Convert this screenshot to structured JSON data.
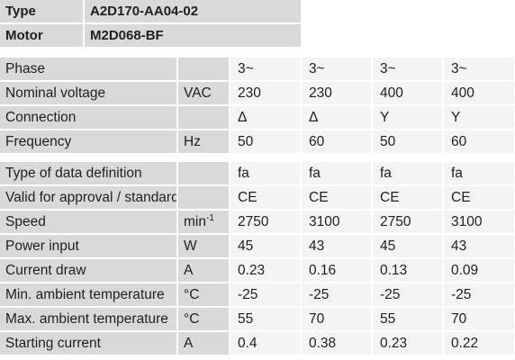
{
  "header": {
    "type_label": "Type",
    "type_value": "A2D170-AA04-02",
    "motor_label": "Motor",
    "motor_value": "M2D068-BF"
  },
  "group1": [
    {
      "label": "Phase",
      "unit": "",
      "values": [
        "3~",
        "3~",
        "3~",
        "3~"
      ]
    },
    {
      "label": "Nominal voltage",
      "unit": "VAC",
      "values": [
        "230",
        "230",
        "400",
        "400"
      ]
    },
    {
      "label": "Connection",
      "unit": "",
      "values": [
        "Δ",
        "Δ",
        "Y",
        "Y"
      ]
    },
    {
      "label": "Frequency",
      "unit": "Hz",
      "values": [
        "50",
        "60",
        "50",
        "60"
      ]
    }
  ],
  "group2": [
    {
      "label": "Type of data definition",
      "unit": "",
      "values": [
        "fa",
        "fa",
        "fa",
        "fa"
      ]
    },
    {
      "label": "Valid for approval / standard",
      "unit": "",
      "values": [
        "CE",
        "CE",
        "CE",
        "CE"
      ]
    },
    {
      "label": "Speed",
      "unit": "min",
      "unit_sup": "-1",
      "values": [
        "2750",
        "3100",
        "2750",
        "3100"
      ]
    },
    {
      "label": "Power input",
      "unit": "W",
      "values": [
        "45",
        "43",
        "45",
        "43"
      ]
    },
    {
      "label": "Current draw",
      "unit": "A",
      "values": [
        "0.23",
        "0.16",
        "0.13",
        "0.09"
      ]
    },
    {
      "label": "Min. ambient temperature",
      "unit": "°C",
      "values": [
        "-25",
        "-25",
        "-25",
        "-25"
      ]
    },
    {
      "label": "Max. ambient temperature",
      "unit": "°C",
      "values": [
        "55",
        "70",
        "55",
        "70"
      ]
    },
    {
      "label": "Starting current",
      "unit": "A",
      "values": [
        "0.4",
        "0.38",
        "0.23",
        "0.22"
      ]
    }
  ]
}
